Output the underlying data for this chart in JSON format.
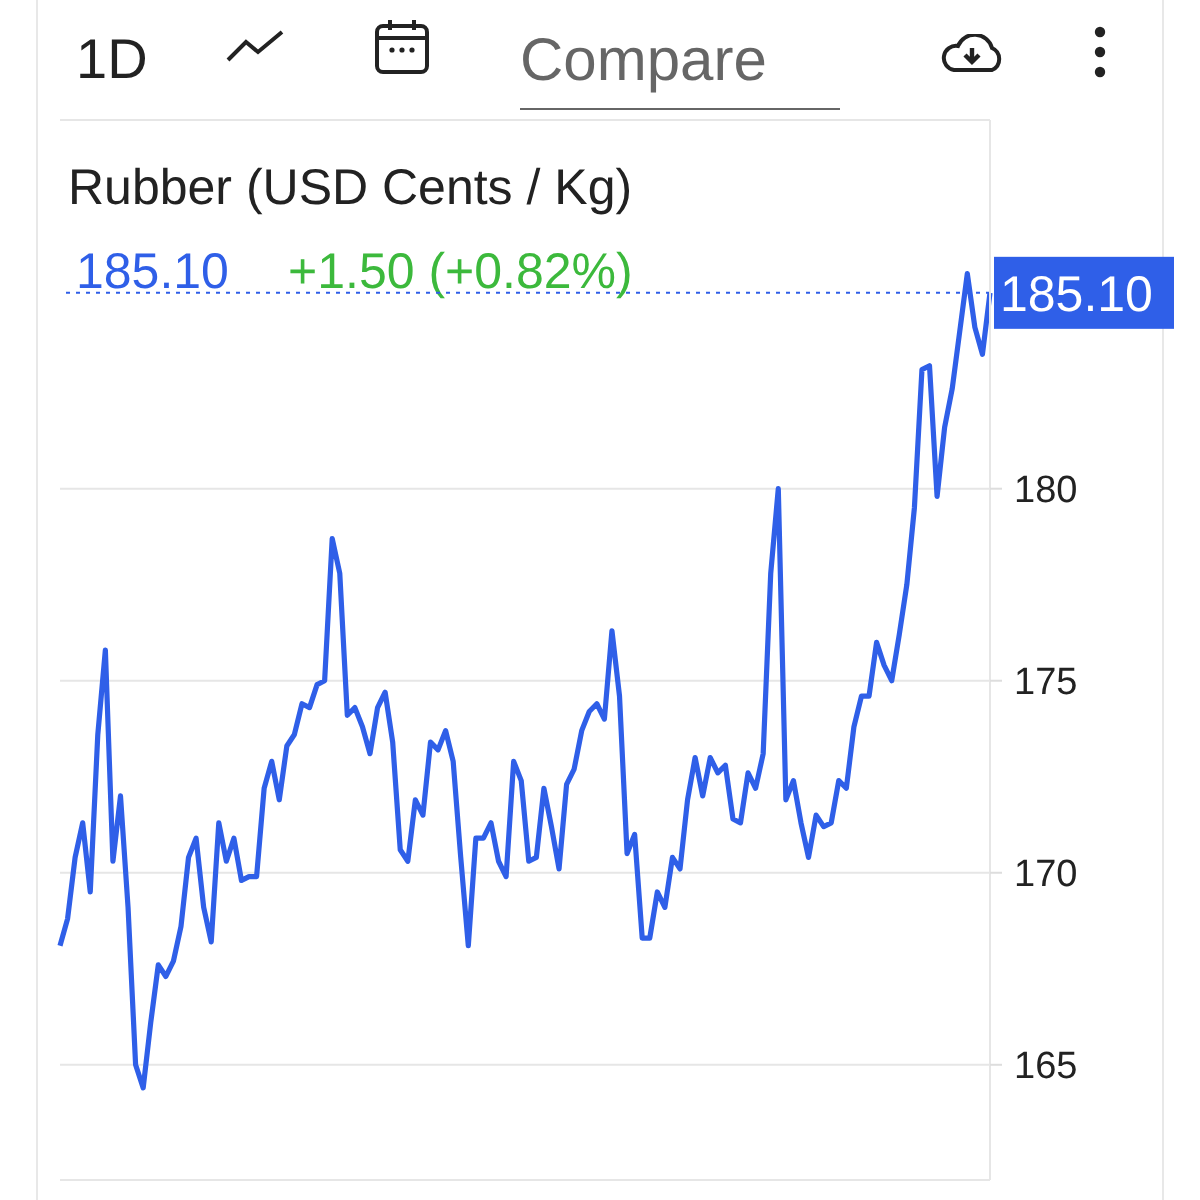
{
  "chart_data": {
    "type": "line",
    "title": "Rubber (USD Cents / Kg)",
    "annotations": [
      "1D",
      "Compare",
      "185.10",
      "+1.50 (+0.82%)"
    ],
    "categories": [
      null,
      null,
      null,
      null,
      null,
      null,
      null,
      null,
      null,
      null,
      null,
      null,
      null,
      null,
      null,
      null,
      null,
      null,
      null,
      null,
      null,
      null,
      null,
      null,
      null,
      null,
      null,
      null,
      null,
      null,
      null,
      null,
      null,
      null,
      null,
      null,
      null,
      null,
      null,
      null,
      null,
      null,
      null,
      null,
      null,
      null,
      null,
      null,
      null,
      null,
      null,
      null,
      null,
      null,
      null,
      null,
      null,
      null,
      null,
      null,
      null,
      null,
      null,
      null,
      null,
      null,
      null,
      null,
      null,
      null,
      null,
      null,
      null,
      null,
      null,
      null,
      null,
      null,
      null,
      null,
      null,
      null,
      null,
      null,
      null,
      null,
      null,
      null,
      null,
      null,
      null,
      null,
      null,
      null,
      null,
      null,
      null,
      null,
      null,
      null,
      null,
      null,
      null,
      null,
      null,
      null,
      null,
      null,
      null,
      null,
      null,
      null,
      null,
      null,
      null,
      null,
      null,
      null,
      null,
      null,
      null,
      null,
      null,
      null
    ],
    "series": [
      {
        "color": "#2f5fe8",
        "values": [
          168.1,
          168.8,
          170.4,
          171.3,
          169.5,
          173.6,
          175.8,
          170.3,
          172.0,
          169.1,
          165.0,
          164.4,
          166.1,
          167.6,
          167.3,
          167.7,
          168.6,
          170.4,
          170.9,
          169.1,
          168.2,
          171.3,
          170.3,
          170.9,
          169.8,
          169.9,
          169.9,
          172.2,
          172.9,
          171.9,
          173.3,
          173.6,
          174.4,
          174.3,
          174.9,
          175.0,
          178.7,
          177.8,
          174.1,
          174.3,
          173.8,
          173.1,
          174.3,
          174.7,
          173.4,
          170.6,
          170.3,
          171.9,
          171.5,
          173.4,
          173.2,
          173.7,
          172.9,
          170.4,
          168.1,
          170.9,
          170.9,
          171.3,
          170.3,
          169.9,
          172.9,
          172.4,
          170.3,
          170.4,
          172.2,
          171.2,
          170.1,
          172.3,
          172.7,
          173.7,
          174.2,
          174.4,
          174.0,
          176.3,
          174.6,
          170.5,
          171.0,
          168.3,
          168.3,
          169.5,
          169.1,
          170.4,
          170.1,
          171.9,
          173.0,
          172.0,
          173.0,
          172.6,
          172.8,
          171.4,
          171.3,
          172.6,
          172.2,
          173.1,
          177.8,
          180.0,
          171.9,
          172.4,
          171.3,
          170.4,
          171.5,
          171.2,
          171.3,
          172.4,
          172.2,
          173.8,
          174.6,
          174.6,
          176.0,
          175.4,
          175.0,
          176.2,
          177.5,
          179.5,
          183.1,
          183.2,
          179.8,
          181.6,
          182.6,
          184.1,
          185.6,
          184.2,
          183.5,
          185.1
        ]
      }
    ],
    "ylim": [
      162,
      189.6
    ],
    "yticks": [
      165,
      170,
      175,
      180
    ],
    "grid": "y",
    "marker": "none",
    "line_style": "solid",
    "ref_lines": [
      {
        "axis": "y",
        "value": 185.1,
        "label": "185.10",
        "color": "#2f5fe8",
        "line_style": "dotted"
      }
    ]
  }
}
